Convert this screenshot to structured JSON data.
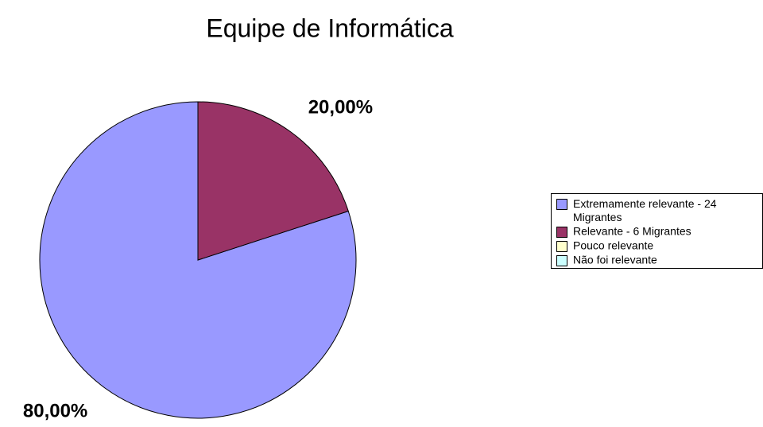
{
  "chart_data": {
    "type": "pie",
    "title": "Equipe de Informática",
    "categories": [
      "Extremamente relevante - 24 Migrantes",
      "Relevante - 6 Migrantes",
      "Pouco relevante",
      "Não foi relevante"
    ],
    "values": [
      80,
      20,
      0,
      0
    ],
    "value_labels": [
      "80,00%",
      "20,00%",
      null,
      null
    ],
    "colors": [
      "#9999ff",
      "#993366",
      "#ffffcc",
      "#ccffff"
    ],
    "legend": "right"
  }
}
